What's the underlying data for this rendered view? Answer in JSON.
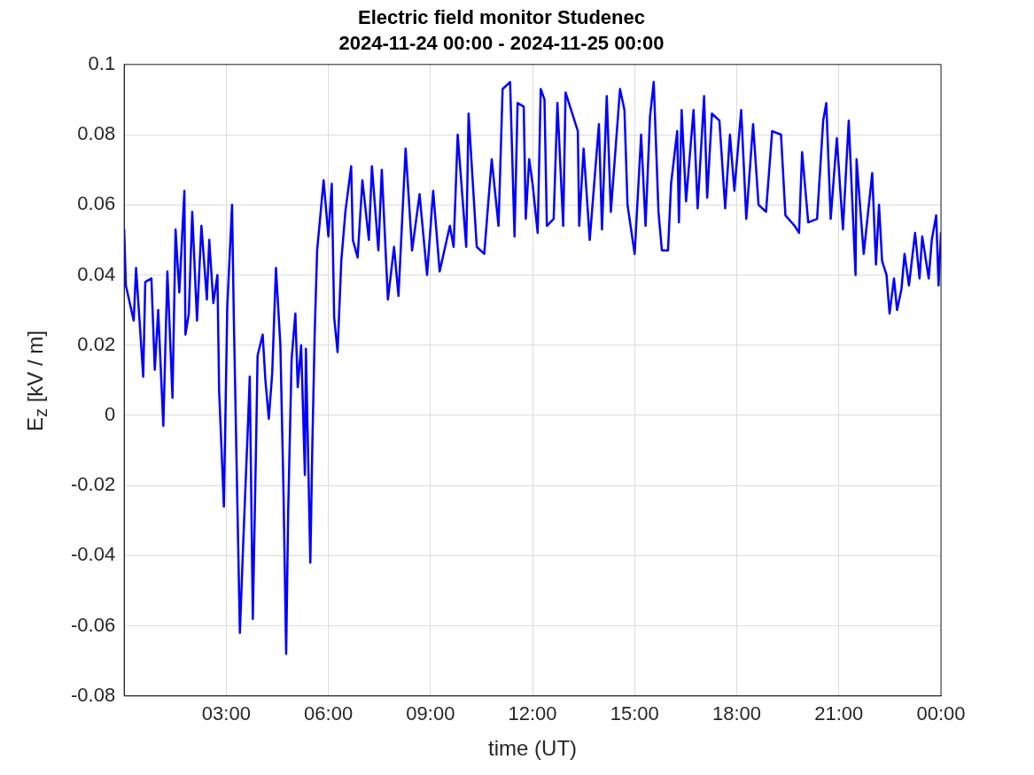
{
  "chart_data": {
    "type": "line",
    "title": "Electric field monitor Studenec",
    "subtitle": "2024-11-24 00:00 - 2024-11-25 00:00",
    "xlabel": "time (UT)",
    "ylabel": "E$_{z}$ [kV / m]",
    "xlim": [
      0,
      24
    ],
    "xticks": [
      {
        "value": 3,
        "label": "03:00"
      },
      {
        "value": 6,
        "label": "06:00"
      },
      {
        "value": 9,
        "label": "09:00"
      },
      {
        "value": 12,
        "label": "12:00"
      },
      {
        "value": 15,
        "label": "15:00"
      },
      {
        "value": 18,
        "label": "18:00"
      },
      {
        "value": 21,
        "label": "21:00"
      },
      {
        "value": 24,
        "label": "00:00"
      }
    ],
    "ylim": [
      -0.08,
      0.1
    ],
    "yticks": [
      -0.08,
      -0.06,
      -0.04,
      -0.02,
      0,
      0.02,
      0.04,
      0.06,
      0.08,
      0.1
    ],
    "grid": true,
    "legend": false,
    "marker": "none",
    "line_style": "solid",
    "series": [
      {
        "color": "#0000ff",
        "x": [
          0,
          0.05,
          0.28,
          0.35,
          0.56,
          0.62,
          0.8,
          0.9,
          1.0,
          1.15,
          1.27,
          1.42,
          1.51,
          1.62,
          1.77,
          1.8,
          1.9,
          2.0,
          2.14,
          2.27,
          2.43,
          2.5,
          2.62,
          2.74,
          2.79,
          2.93,
          3.03,
          3.17,
          3.22,
          3.31,
          3.4,
          3.5,
          3.64,
          3.69,
          3.78,
          3.88,
          3.92,
          4.07,
          4.15,
          4.25,
          4.35,
          4.46,
          4.59,
          4.68,
          4.76,
          4.82,
          4.92,
          5.03,
          5.1,
          5.2,
          5.31,
          5.34,
          5.47,
          5.53,
          5.6,
          5.67,
          5.86,
          6.0,
          6.1,
          6.17,
          6.27,
          6.38,
          6.5,
          6.67,
          6.72,
          6.86,
          7.0,
          7.19,
          7.28,
          7.47,
          7.57,
          7.75,
          7.93,
          8.06,
          8.27,
          8.46,
          8.68,
          8.9,
          9.08,
          9.27,
          9.57,
          9.68,
          9.8,
          10.05,
          10.12,
          10.36,
          10.58,
          10.8,
          11.0,
          11.12,
          11.34,
          11.47,
          11.56,
          11.74,
          11.8,
          11.9,
          12.0,
          12.15,
          12.24,
          12.35,
          12.42,
          12.62,
          12.73,
          12.9,
          12.97,
          13.33,
          13.37,
          13.5,
          13.68,
          13.95,
          14.04,
          14.18,
          14.3,
          14.57,
          14.7,
          14.79,
          15.0,
          15.19,
          15.32,
          15.45,
          15.56,
          15.7,
          15.8,
          15.98,
          16.07,
          16.25,
          16.3,
          16.38,
          16.51,
          16.73,
          16.85,
          17.04,
          17.13,
          17.27,
          17.49,
          17.66,
          17.8,
          17.93,
          18.13,
          18.28,
          18.48,
          18.64,
          18.86,
          19.04,
          19.3,
          19.43,
          19.7,
          19.83,
          19.92,
          20.1,
          20.36,
          20.54,
          20.63,
          20.76,
          20.94,
          21.12,
          21.29,
          21.49,
          21.52,
          21.73,
          21.98,
          22.09,
          22.18,
          22.27,
          22.4,
          22.49,
          22.62,
          22.71,
          22.84,
          22.93,
          23.06,
          23.24,
          23.37,
          23.45,
          23.64,
          23.73,
          23.86,
          23.93,
          24.0
        ],
        "values": [
          0.053,
          0.037,
          0.027,
          0.042,
          0.011,
          0.038,
          0.039,
          0.013,
          0.03,
          -0.003,
          0.041,
          0.005,
          0.053,
          0.035,
          0.064,
          0.023,
          0.029,
          0.058,
          0.027,
          0.054,
          0.033,
          0.05,
          0.032,
          0.04,
          0.007,
          -0.026,
          0.031,
          0.06,
          0.029,
          -0.017,
          -0.062,
          -0.036,
          -0.002,
          0.011,
          -0.058,
          -0.006,
          0.017,
          0.023,
          0.01,
          -0.001,
          0.012,
          0.042,
          0.02,
          -0.021,
          -0.068,
          -0.027,
          0.016,
          0.029,
          0.008,
          0.02,
          -0.017,
          0.019,
          -0.042,
          -0.008,
          0.024,
          0.047,
          0.067,
          0.051,
          0.066,
          0.028,
          0.018,
          0.044,
          0.058,
          0.071,
          0.05,
          0.045,
          0.067,
          0.05,
          0.071,
          0.047,
          0.07,
          0.033,
          0.048,
          0.034,
          0.076,
          0.047,
          0.063,
          0.04,
          0.064,
          0.041,
          0.054,
          0.048,
          0.08,
          0.048,
          0.086,
          0.048,
          0.046,
          0.073,
          0.054,
          0.093,
          0.095,
          0.051,
          0.089,
          0.088,
          0.056,
          0.073,
          0.066,
          0.052,
          0.093,
          0.09,
          0.054,
          0.056,
          0.089,
          0.054,
          0.092,
          0.081,
          0.054,
          0.076,
          0.05,
          0.083,
          0.053,
          0.091,
          0.058,
          0.093,
          0.087,
          0.06,
          0.046,
          0.08,
          0.054,
          0.085,
          0.095,
          0.058,
          0.047,
          0.047,
          0.066,
          0.081,
          0.055,
          0.087,
          0.061,
          0.087,
          0.059,
          0.091,
          0.062,
          0.086,
          0.084,
          0.059,
          0.08,
          0.064,
          0.087,
          0.056,
          0.083,
          0.06,
          0.058,
          0.081,
          0.08,
          0.057,
          0.054,
          0.052,
          0.075,
          0.055,
          0.056,
          0.084,
          0.089,
          0.056,
          0.079,
          0.053,
          0.084,
          0.04,
          0.073,
          0.046,
          0.069,
          0.043,
          0.06,
          0.044,
          0.04,
          0.029,
          0.039,
          0.03,
          0.036,
          0.046,
          0.037,
          0.052,
          0.039,
          0.051,
          0.039,
          0.05,
          0.057,
          0.037,
          0.052
        ]
      }
    ]
  }
}
